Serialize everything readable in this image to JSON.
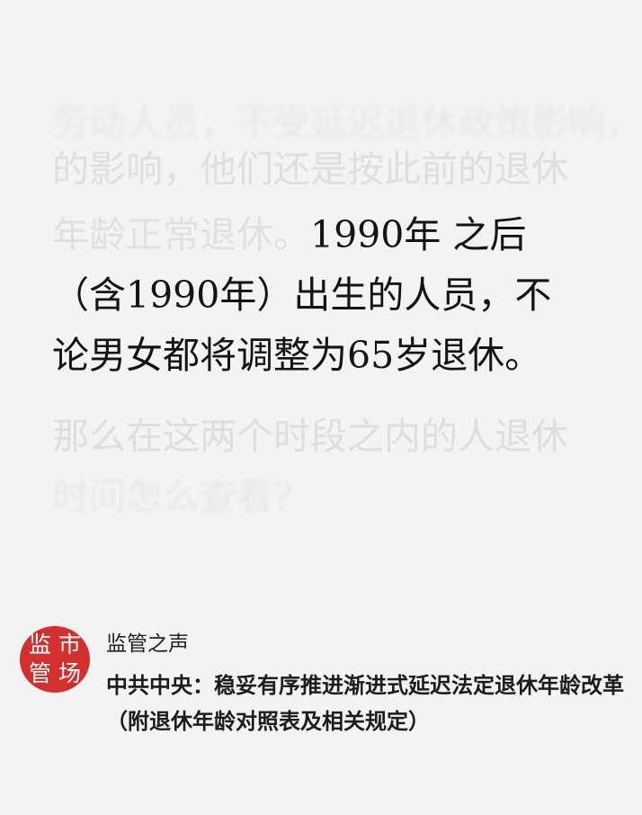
{
  "article": {
    "line0": "劳动人员，不受延迟退休政策影响，",
    "line1": "的影响，他们还是按此前的退休",
    "line2_faded": "年龄正常退休。",
    "line2_strong": "1990年 之后",
    "line3": "（含1990年）出生的人员，不",
    "line4": "论男女都将调整为65岁退休。",
    "line5": "那么在这两个时段之内的人退休",
    "line6": "时间怎么查看?"
  },
  "source": {
    "seal_chars": [
      "监",
      "市",
      "管",
      "场"
    ],
    "name": "监管之声",
    "title": "中共中央：稳妥有序推进渐进式延迟法定退休年龄改革（附退休年龄对照表及相关规定）"
  },
  "colors": {
    "seal_red": "#d32f2f",
    "background": "#f3f3f3"
  }
}
